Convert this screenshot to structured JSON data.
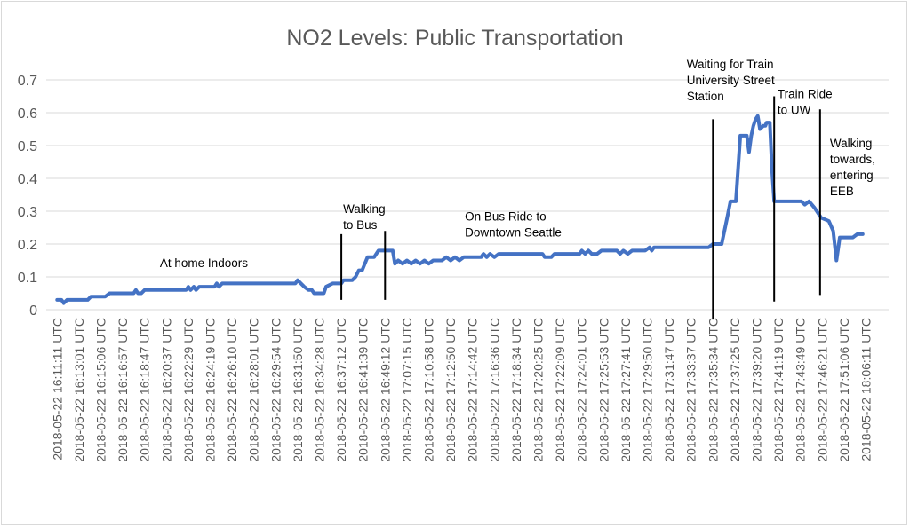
{
  "chart_data": {
    "type": "line",
    "title": "NO2 Levels: Public Transportation",
    "xlabel": "",
    "ylabel": "",
    "ylim": [
      0,
      0.7
    ],
    "y_ticks": [
      "0",
      "0.1",
      "0.2",
      "0.3",
      "0.4",
      "0.5",
      "0.6",
      "0.7"
    ],
    "grid": true,
    "legend": "none",
    "x_tick_labels": [
      "2018-05-22 16:11:11 UTC",
      "2018-05-22 16:13:01 UTC",
      "2018-05-22 16:15:06 UTC",
      "2018-05-22 16:16:57 UTC",
      "2018-05-22 16:18:47 UTC",
      "2018-05-22 16:20:37 UTC",
      "2018-05-22 16:22:29 UTC",
      "2018-05-22 16:24:19 UTC",
      "2018-05-22 16:26:10 UTC",
      "2018-05-22 16:28:01 UTC",
      "2018-05-22 16:29:54 UTC",
      "2018-05-22 16:31:50 UTC",
      "2018-05-22 16:34:28 UTC",
      "2018-05-22 16:37:12 UTC",
      "2018-05-22 16:41:39 UTC",
      "2018-05-22 16:49:12 UTC",
      "2018-05-22 17:07:15 UTC",
      "2018-05-22 17:10:58 UTC",
      "2018-05-22 17:12:50 UTC",
      "2018-05-22 17:14:42 UTC",
      "2018-05-22 17:16:36 UTC",
      "2018-05-22 17:18:34 UTC",
      "2018-05-22 17:20:25 UTC",
      "2018-05-22 17:22:09 UTC",
      "2018-05-22 17:24:01 UTC",
      "2018-05-22 17:25:53 UTC",
      "2018-05-22 17:27:41 UTC",
      "2018-05-22 17:29:50 UTC",
      "2018-05-22 17:31:47 UTC",
      "2018-05-22 17:33:37 UTC",
      "2018-05-22 17:35:34 UTC",
      "2018-05-22 17:37:25 UTC",
      "2018-05-22 17:39:20 UTC",
      "2018-05-22 17:41:19 UTC",
      "2018-05-22 17:43:49 UTC",
      "2018-05-22 17:46:21 UTC",
      "2018-05-22 17:51:06 UTC",
      "2018-05-22 18:06:11 UTC"
    ],
    "series": [
      {
        "color": "#4472c4",
        "points": [
          [
            0.0,
            0.03
          ],
          [
            0.2,
            0.03
          ],
          [
            0.3,
            0.02
          ],
          [
            0.45,
            0.03
          ],
          [
            1.0,
            0.03
          ],
          [
            1.4,
            0.03
          ],
          [
            1.55,
            0.04
          ],
          [
            2.2,
            0.04
          ],
          [
            2.4,
            0.05
          ],
          [
            3.5,
            0.05
          ],
          [
            3.6,
            0.06
          ],
          [
            3.7,
            0.05
          ],
          [
            3.85,
            0.05
          ],
          [
            4.0,
            0.06
          ],
          [
            5.9,
            0.06
          ],
          [
            6.0,
            0.07
          ],
          [
            6.1,
            0.06
          ],
          [
            6.25,
            0.07
          ],
          [
            6.35,
            0.06
          ],
          [
            6.5,
            0.07
          ],
          [
            7.2,
            0.07
          ],
          [
            7.3,
            0.08
          ],
          [
            7.4,
            0.07
          ],
          [
            7.55,
            0.08
          ],
          [
            10.9,
            0.08
          ],
          [
            11.0,
            0.09
          ],
          [
            11.3,
            0.07
          ],
          [
            11.5,
            0.06
          ],
          [
            11.65,
            0.06
          ],
          [
            11.75,
            0.05
          ],
          [
            12.2,
            0.05
          ],
          [
            12.3,
            0.07
          ],
          [
            12.6,
            0.08
          ],
          [
            13.0,
            0.08
          ],
          [
            13.1,
            0.09
          ],
          [
            13.5,
            0.09
          ],
          [
            13.65,
            0.1
          ],
          [
            13.8,
            0.12
          ],
          [
            13.95,
            0.12
          ],
          [
            14.2,
            0.16
          ],
          [
            14.5,
            0.16
          ],
          [
            14.7,
            0.18
          ],
          [
            15.35,
            0.18
          ],
          [
            15.45,
            0.14
          ],
          [
            15.6,
            0.15
          ],
          [
            15.8,
            0.14
          ],
          [
            16.0,
            0.15
          ],
          [
            16.2,
            0.14
          ],
          [
            16.4,
            0.15
          ],
          [
            16.6,
            0.14
          ],
          [
            16.8,
            0.15
          ],
          [
            17.0,
            0.14
          ],
          [
            17.2,
            0.15
          ],
          [
            17.6,
            0.15
          ],
          [
            17.8,
            0.16
          ],
          [
            18.0,
            0.15
          ],
          [
            18.2,
            0.16
          ],
          [
            18.4,
            0.15
          ],
          [
            18.6,
            0.16
          ],
          [
            19.4,
            0.16
          ],
          [
            19.5,
            0.17
          ],
          [
            19.65,
            0.16
          ],
          [
            19.8,
            0.17
          ],
          [
            20.0,
            0.16
          ],
          [
            20.2,
            0.17
          ],
          [
            22.2,
            0.17
          ],
          [
            22.3,
            0.16
          ],
          [
            22.6,
            0.16
          ],
          [
            22.75,
            0.17
          ],
          [
            23.9,
            0.17
          ],
          [
            24.0,
            0.18
          ],
          [
            24.15,
            0.17
          ],
          [
            24.3,
            0.18
          ],
          [
            24.45,
            0.17
          ],
          [
            24.7,
            0.17
          ],
          [
            24.9,
            0.18
          ],
          [
            25.6,
            0.18
          ],
          [
            25.75,
            0.17
          ],
          [
            25.9,
            0.18
          ],
          [
            26.1,
            0.17
          ],
          [
            26.3,
            0.18
          ],
          [
            26.9,
            0.18
          ],
          [
            27.1,
            0.19
          ],
          [
            27.2,
            0.18
          ],
          [
            27.3,
            0.19
          ],
          [
            29.8,
            0.19
          ],
          [
            30.0,
            0.2
          ],
          [
            30.4,
            0.2
          ],
          [
            30.65,
            0.28
          ],
          [
            30.8,
            0.33
          ],
          [
            31.05,
            0.33
          ],
          [
            31.25,
            0.53
          ],
          [
            31.55,
            0.53
          ],
          [
            31.65,
            0.48
          ],
          [
            31.75,
            0.53
          ],
          [
            31.85,
            0.56
          ],
          [
            31.95,
            0.58
          ],
          [
            32.05,
            0.59
          ],
          [
            32.15,
            0.55
          ],
          [
            32.3,
            0.56
          ],
          [
            32.4,
            0.56
          ],
          [
            32.45,
            0.57
          ],
          [
            32.6,
            0.57
          ],
          [
            32.7,
            0.43
          ],
          [
            32.8,
            0.33
          ],
          [
            34.05,
            0.33
          ],
          [
            34.2,
            0.32
          ],
          [
            34.4,
            0.33
          ],
          [
            34.65,
            0.31
          ],
          [
            34.95,
            0.28
          ],
          [
            35.3,
            0.27
          ],
          [
            35.5,
            0.24
          ],
          [
            35.65,
            0.15
          ],
          [
            35.8,
            0.22
          ],
          [
            36.4,
            0.22
          ],
          [
            36.6,
            0.23
          ],
          [
            36.85,
            0.23
          ]
        ]
      }
    ],
    "event_markers": [
      {
        "x": 13.0,
        "y_from": 0.03,
        "y_to": 0.23
      },
      {
        "x": 15.0,
        "y_from": 0.03,
        "y_to": 0.24
      },
      {
        "x": 30.0,
        "y_from": -0.03,
        "y_to": 0.58
      },
      {
        "x": 32.8,
        "y_from": 0.025,
        "y_to": 0.65
      },
      {
        "x": 34.9,
        "y_from": 0.045,
        "y_to": 0.61
      }
    ],
    "annotations": [
      {
        "lines": [
          "At home Indoors"
        ],
        "x": 4.7,
        "y": 0.13
      },
      {
        "lines": [
          "Walking",
          "to Bus"
        ],
        "x": 13.08,
        "y": 0.295
      },
      {
        "lines": [
          "On Bus Ride to",
          "Downtown Seattle"
        ],
        "x": 18.65,
        "y": 0.272
      },
      {
        "lines": [
          "Waiting for Train",
          "University Street",
          "Station"
        ],
        "x": 28.8,
        "y": 0.735
      },
      {
        "lines": [
          "Train Ride",
          "to UW"
        ],
        "x": 32.95,
        "y": 0.645
      },
      {
        "lines": [
          "Walking",
          "towards,",
          "entering",
          "EEB"
        ],
        "x": 35.35,
        "y": 0.495
      }
    ]
  }
}
